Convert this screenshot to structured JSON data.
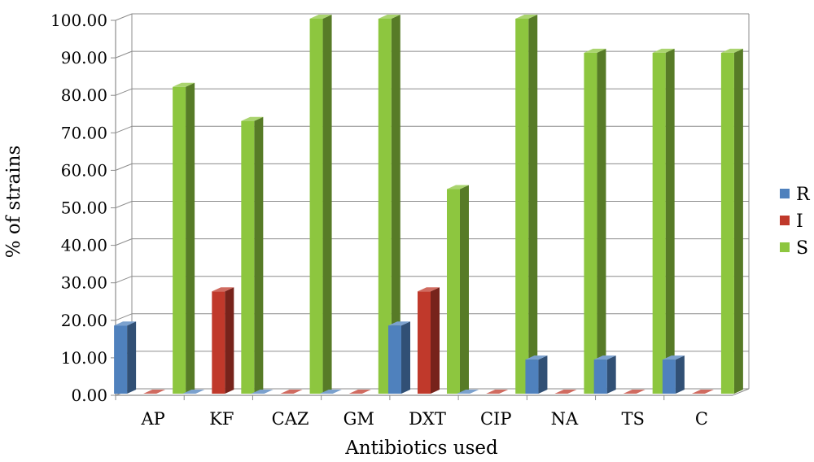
{
  "chart_data": {
    "type": "bar",
    "categories": [
      "AP",
      "KF",
      "CAZ",
      "GM",
      "DXT",
      "CIP",
      "NA",
      "TS",
      "C"
    ],
    "series": [
      {
        "name": "R",
        "values": [
          18.18,
          0,
          0,
          0,
          18.18,
          0,
          9.09,
          9.09,
          9.09
        ],
        "color": "#4f81bd"
      },
      {
        "name": "I",
        "values": [
          0,
          27.27,
          0,
          0,
          27.27,
          0,
          0,
          0,
          0
        ],
        "color": "#c0392b"
      },
      {
        "name": "S",
        "values": [
          81.82,
          72.73,
          100,
          100,
          54.55,
          100,
          90.91,
          90.91,
          90.91
        ],
        "color": "#8dc63f"
      }
    ],
    "xlabel": "Antibiotics used",
    "ylabel": "% of strains",
    "ylim": [
      0,
      100
    ],
    "yticks": [
      "0.00",
      "10.00",
      "20.00",
      "30.00",
      "40.00",
      "50.00",
      "60.00",
      "70.00",
      "80.00",
      "90.00",
      "100.00"
    ],
    "grid": true,
    "legend_position": "right",
    "style": "3d-column"
  }
}
